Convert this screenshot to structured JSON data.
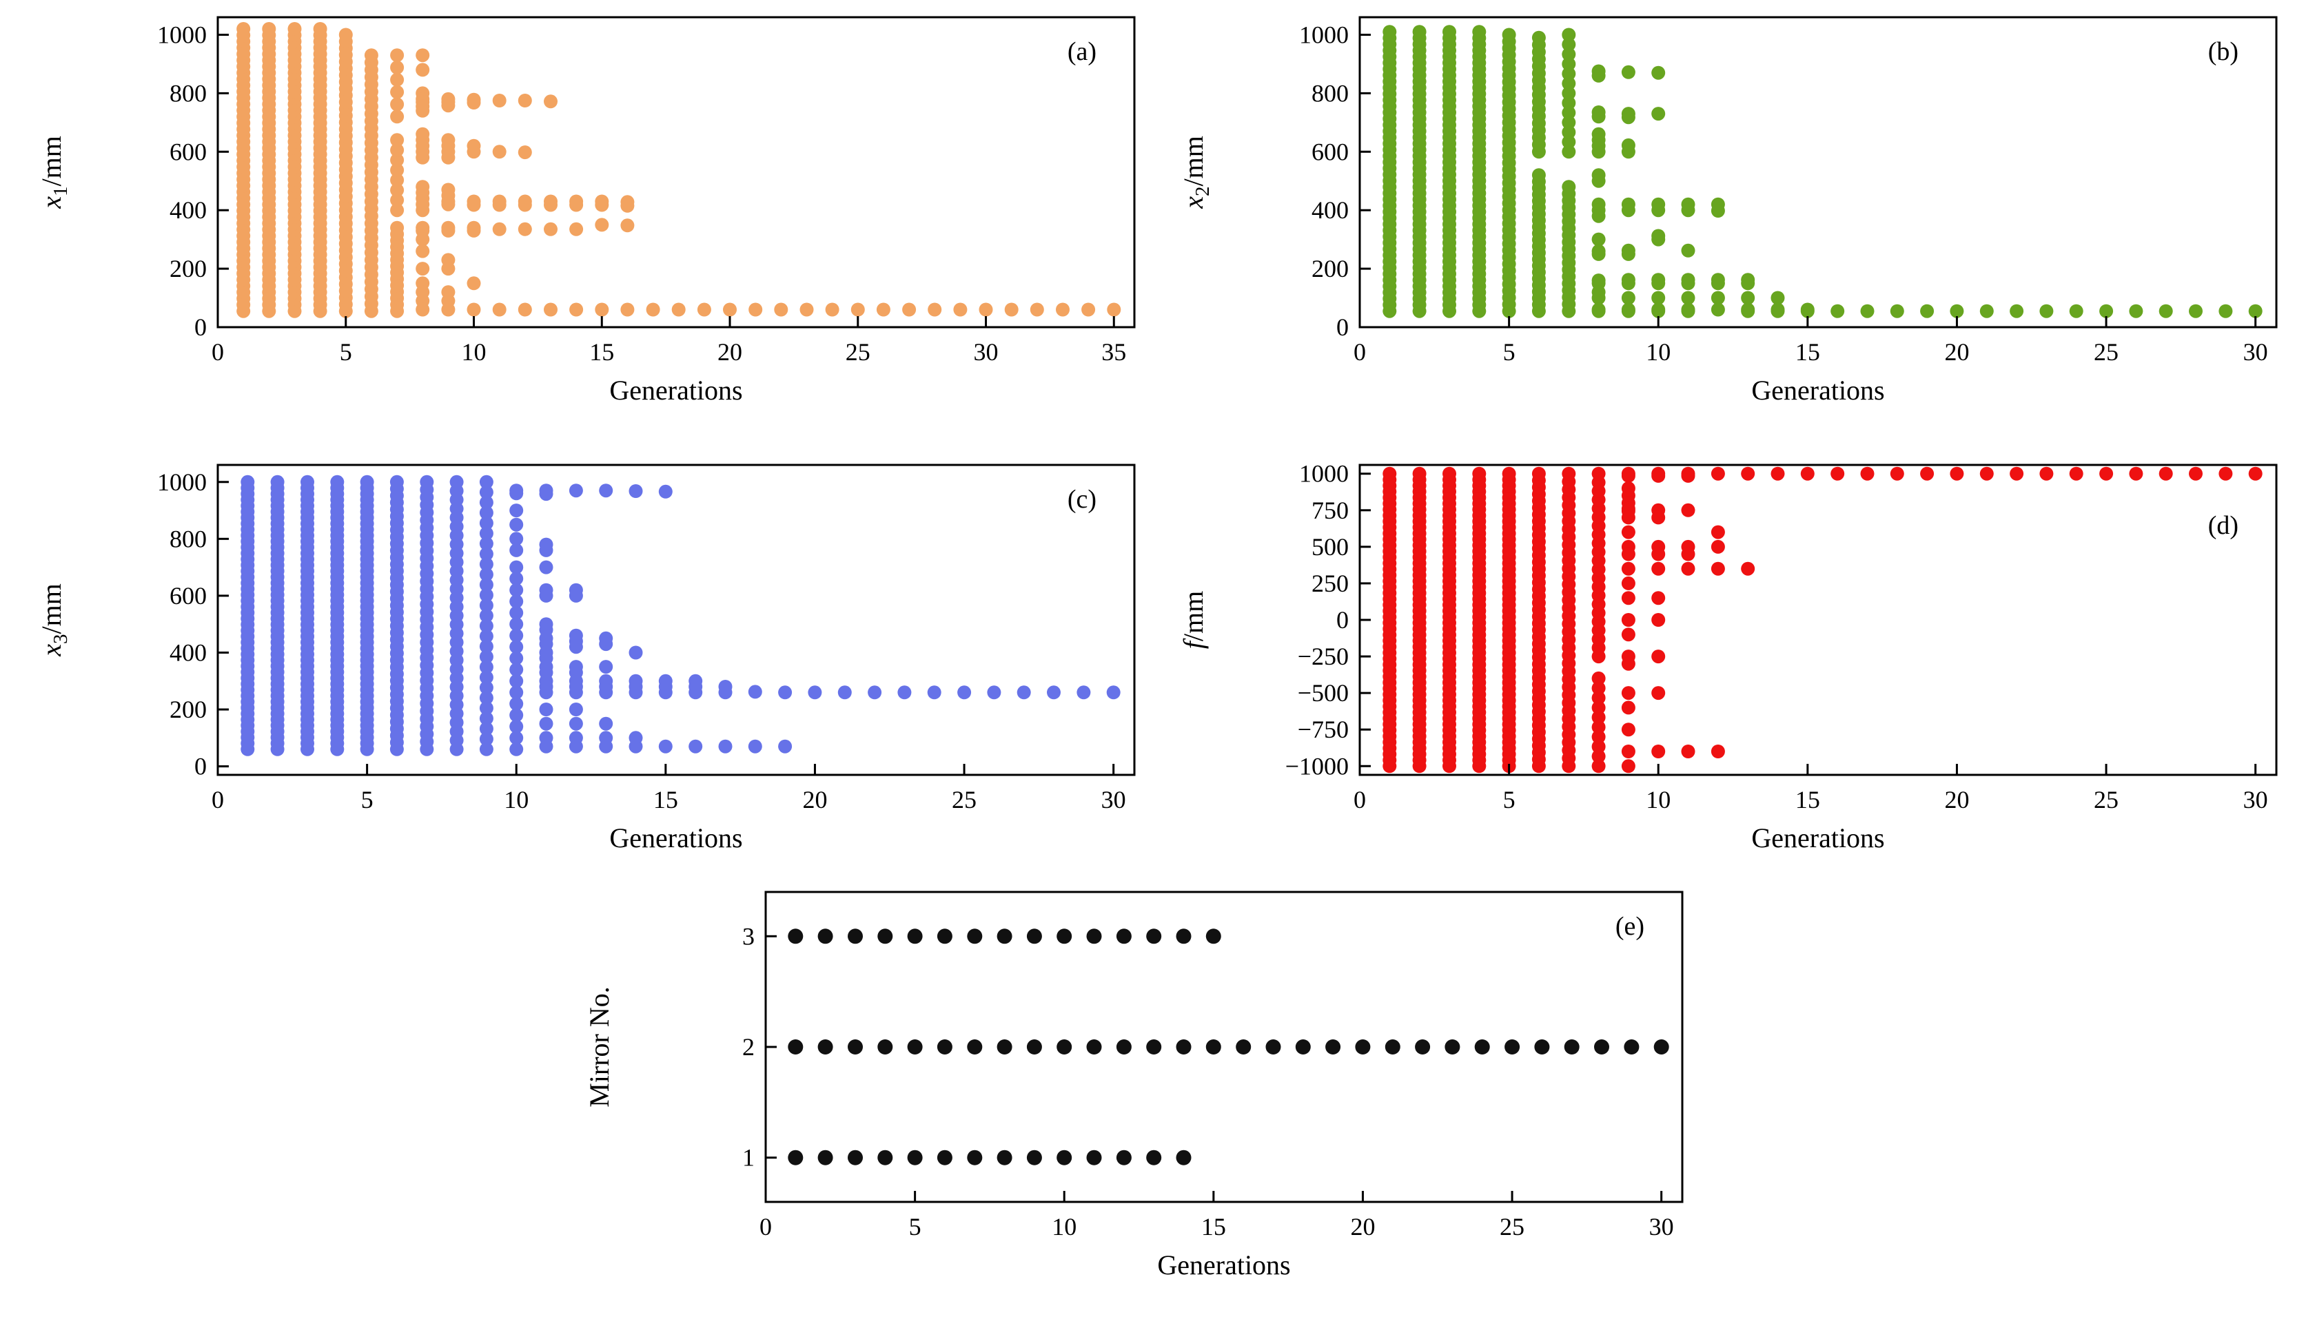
{
  "figure": {
    "background": "#ffffff",
    "xlabel": "Generations"
  },
  "chart_data": [
    {
      "id": "a",
      "type": "scatter",
      "panel_label": "(a)",
      "color": "#f2a360",
      "marker_radius": 10,
      "xlabel": "Generations",
      "ylabel": {
        "variable": "x",
        "subscript": "1",
        "suffix": "/mm"
      },
      "xlim": [
        0,
        35.8
      ],
      "ylim": [
        0,
        1060
      ],
      "xticks": [
        0,
        5,
        10,
        15,
        20,
        25,
        30,
        35
      ],
      "yticks": [
        0,
        200,
        400,
        600,
        800,
        1000
      ],
      "columns": [
        {
          "x": 1,
          "x_to": 4,
          "fill": [
            55,
            1020,
            46
          ]
        },
        {
          "x": 5,
          "fill": [
            55,
            1000,
            42
          ]
        },
        {
          "x": 6,
          "fill": [
            55,
            930,
            36
          ]
        },
        {
          "x": 7,
          "fills": [
            [
              55,
              340,
              14
            ],
            [
              400,
              640,
              8
            ],
            [
              720,
              930,
              6
            ]
          ]
        },
        {
          "x": 8,
          "ys": [
            930,
            880,
            800,
            780,
            770,
            755,
            740,
            660,
            640,
            620,
            600,
            580,
            480,
            460,
            440,
            420,
            400,
            340,
            330,
            300,
            260,
            200,
            150,
            120,
            90,
            60
          ]
        },
        {
          "x": 9,
          "ys": [
            780,
            770,
            758,
            640,
            620,
            600,
            580,
            470,
            450,
            430,
            420,
            340,
            330,
            230,
            200,
            120,
            90,
            60
          ]
        },
        {
          "x": 10,
          "ys": [
            778,
            768,
            620,
            600,
            430,
            418,
            340,
            330,
            150,
            60
          ]
        },
        {
          "x": 11,
          "ys": [
            775,
            600,
            430,
            418,
            335,
            60
          ]
        },
        {
          "x": 12,
          "ys": [
            775,
            598,
            430,
            418,
            335,
            60
          ]
        },
        {
          "x": 13,
          "ys": [
            772,
            430,
            418,
            335,
            60
          ]
        },
        {
          "x": 14,
          "ys": [
            430,
            418,
            335,
            60
          ]
        },
        {
          "x": 15,
          "ys": [
            430,
            418,
            350,
            60
          ]
        },
        {
          "x": 16,
          "ys": [
            428,
            415,
            348,
            60
          ]
        },
        {
          "x": 17,
          "x_to": 35,
          "ys": [
            60
          ]
        }
      ]
    },
    {
      "id": "b",
      "type": "scatter",
      "panel_label": "(b)",
      "color": "#67a51f",
      "marker_radius": 10,
      "xlabel": "Generations",
      "ylabel": {
        "variable": "x",
        "subscript": "2",
        "suffix": "/mm"
      },
      "xlim": [
        0,
        30.7
      ],
      "ylim": [
        0,
        1060
      ],
      "xticks": [
        0,
        5,
        10,
        15,
        20,
        25,
        30
      ],
      "yticks": [
        0,
        200,
        400,
        600,
        800,
        1000
      ],
      "columns": [
        {
          "x": 1,
          "x_to": 4,
          "fill": [
            55,
            1010,
            46
          ]
        },
        {
          "x": 5,
          "fill": [
            55,
            1000,
            42
          ]
        },
        {
          "x": 6,
          "fills": [
            [
              55,
              520,
              22
            ],
            [
              600,
              990,
              17
            ]
          ]
        },
        {
          "x": 7,
          "fills": [
            [
              55,
              480,
              19
            ],
            [
              600,
              1000,
              13
            ]
          ]
        },
        {
          "x": 8,
          "ys": [
            875,
            860,
            735,
            720,
            660,
            640,
            620,
            600,
            520,
            500,
            420,
            400,
            380,
            300,
            260,
            250,
            160,
            150,
            120,
            100,
            60,
            55
          ]
        },
        {
          "x": 9,
          "ys": [
            872,
            730,
            718,
            622,
            600,
            420,
            400,
            262,
            250,
            162,
            150,
            100,
            60,
            55
          ]
        },
        {
          "x": 10,
          "ys": [
            870,
            730,
            420,
            400,
            312,
            300,
            162,
            150,
            100,
            60,
            55
          ]
        },
        {
          "x": 11,
          "ys": [
            420,
            400,
            262,
            162,
            150,
            100,
            60,
            55
          ]
        },
        {
          "x": 12,
          "ys": [
            420,
            398,
            162,
            150,
            100,
            60
          ]
        },
        {
          "x": 13,
          "ys": [
            162,
            150,
            100,
            60,
            55
          ]
        },
        {
          "x": 14,
          "ys": [
            100,
            60,
            55
          ]
        },
        {
          "x": 15,
          "ys": [
            60,
            55
          ]
        },
        {
          "x": 16,
          "x_to": 30,
          "ys": [
            55
          ]
        }
      ]
    },
    {
      "id": "c",
      "type": "scatter",
      "panel_label": "(c)",
      "color": "#6672e8",
      "marker_radius": 10,
      "xlabel": "Generations",
      "ylabel": {
        "variable": "x",
        "subscript": "3",
        "suffix": "/mm"
      },
      "xlim": [
        0,
        30.7
      ],
      "ylim": [
        -30,
        1060
      ],
      "xticks": [
        0,
        5,
        10,
        15,
        20,
        25,
        30
      ],
      "yticks": [
        0,
        200,
        400,
        600,
        800,
        1000
      ],
      "columns": [
        {
          "x": 1,
          "x_to": 5,
          "fill": [
            60,
            1000,
            46
          ]
        },
        {
          "x": 6,
          "fill": [
            60,
            1000,
            40
          ]
        },
        {
          "x": 7,
          "fill": [
            60,
            1000,
            36
          ]
        },
        {
          "x": 8,
          "fill": [
            60,
            1000,
            31
          ]
        },
        {
          "x": 9,
          "fill": [
            60,
            1000,
            27
          ]
        },
        {
          "x": 10,
          "fills": [
            [
              60,
              700,
              17
            ]
          ],
          "ys": [
            760,
            800,
            850,
            900,
            960,
            970
          ]
        },
        {
          "x": 11,
          "ys": [
            970,
            958,
            780,
            760,
            700,
            620,
            600,
            500,
            480,
            450,
            430,
            400,
            380,
            350,
            330,
            300,
            280,
            260,
            200,
            150,
            100,
            70
          ]
        },
        {
          "x": 12,
          "ys": [
            970,
            620,
            600,
            460,
            440,
            420,
            350,
            330,
            300,
            280,
            260,
            200,
            150,
            100,
            70
          ]
        },
        {
          "x": 13,
          "ys": [
            970,
            450,
            430,
            350,
            300,
            280,
            260,
            150,
            100,
            70
          ]
        },
        {
          "x": 14,
          "ys": [
            968,
            400,
            300,
            280,
            260,
            100,
            70
          ]
        },
        {
          "x": 15,
          "ys": [
            966,
            300,
            280,
            260,
            70
          ]
        },
        {
          "x": 16,
          "ys": [
            300,
            280,
            260,
            70
          ]
        },
        {
          "x": 17,
          "ys": [
            280,
            260,
            70
          ]
        },
        {
          "x": 18,
          "ys": [
            262,
            70
          ]
        },
        {
          "x": 19,
          "ys": [
            260,
            70
          ]
        },
        {
          "x": 20,
          "x_to": 30,
          "ys": [
            260
          ]
        }
      ]
    },
    {
      "id": "d",
      "type": "scatter",
      "panel_label": "(d)",
      "label_voffset": 100,
      "color": "#ee1111",
      "marker_radius": 10,
      "xlabel": "Generations",
      "ylabel": {
        "variable": "f",
        "suffix": "/mm"
      },
      "xlim": [
        0,
        30.7
      ],
      "ylim": [
        -1060,
        1060
      ],
      "xticks": [
        0,
        5,
        10,
        15,
        20,
        25,
        30
      ],
      "yticks": [
        -1000,
        -750,
        -500,
        -250,
        0,
        250,
        500,
        750,
        1000
      ],
      "columns": [
        {
          "x": 1,
          "x_to": 5,
          "fill": [
            -1000,
            1000,
            50
          ]
        },
        {
          "x": 6,
          "fill": [
            -1000,
            1000,
            44
          ]
        },
        {
          "x": 7,
          "fill": [
            -1000,
            1000,
            38
          ]
        },
        {
          "x": 8,
          "fills": [
            [
              -1000,
              -400,
              10
            ],
            [
              -250,
              1000,
              22
            ]
          ]
        },
        {
          "x": 9,
          "ys": [
            1000,
            985,
            900,
            850,
            800,
            760,
            745,
            700,
            600,
            500,
            450,
            350,
            250,
            150,
            0,
            -100,
            -250,
            -300,
            -500,
            -600,
            -750,
            -900,
            -1000
          ]
        },
        {
          "x": 10,
          "ys": [
            1000,
            985,
            750,
            700,
            500,
            450,
            350,
            150,
            0,
            -250,
            -500,
            -900
          ]
        },
        {
          "x": 11,
          "ys": [
            1000,
            985,
            750,
            500,
            450,
            350,
            -900
          ]
        },
        {
          "x": 12,
          "ys": [
            1000,
            600,
            500,
            350,
            -900
          ]
        },
        {
          "x": 13,
          "ys": [
            1000,
            350
          ]
        },
        {
          "x": 14,
          "x_to": 30,
          "ys": [
            1000
          ]
        }
      ]
    },
    {
      "id": "e",
      "type": "scatter",
      "panel_label": "(e)",
      "color": "#111111",
      "marker_radius": 11,
      "xlabel": "Generations",
      "ylabel": {
        "text": "Mirror No."
      },
      "xlim": [
        0,
        30.7
      ],
      "ylim": [
        0.6,
        3.4
      ],
      "xticks": [
        0,
        5,
        10,
        15,
        20,
        25,
        30
      ],
      "yticks": [
        1,
        2,
        3
      ],
      "columns": [
        {
          "x": 1,
          "x_to": 14,
          "ys": [
            1,
            2,
            3
          ]
        },
        {
          "x": 15,
          "ys": [
            2,
            3
          ]
        },
        {
          "x": 16,
          "x_to": 30,
          "ys": [
            2
          ]
        }
      ]
    }
  ]
}
